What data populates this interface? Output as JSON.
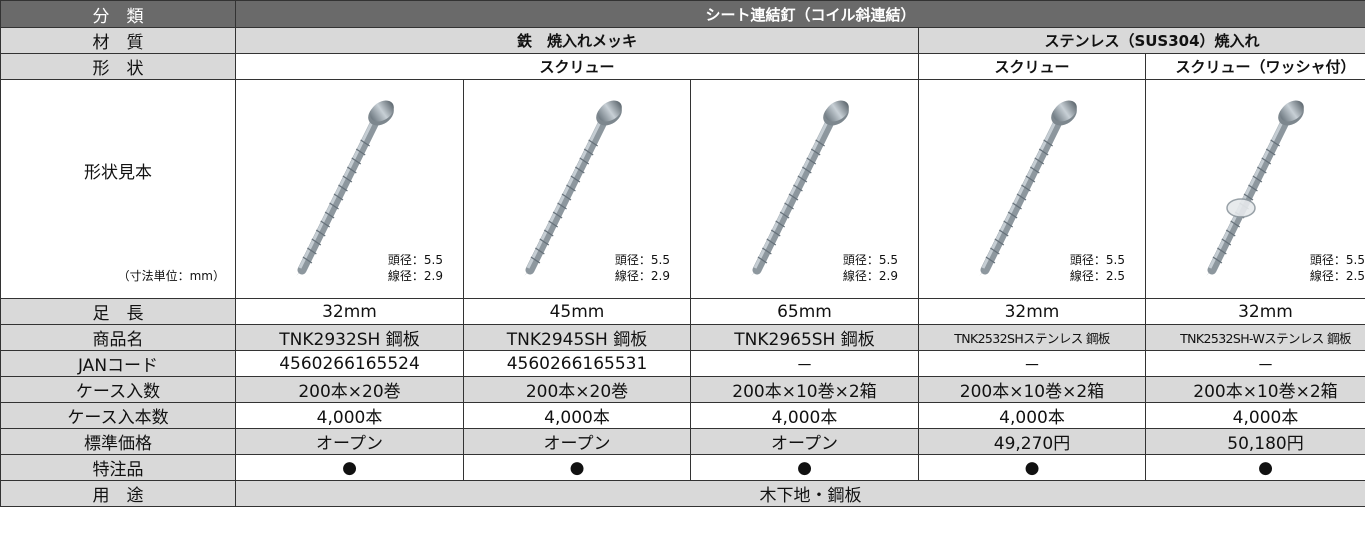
{
  "table": {
    "header": {
      "label": "分　類",
      "value": "シート連結釘（コイル斜連結）"
    },
    "material": {
      "label": "材　質",
      "groups": [
        "鉄　焼入れメッキ",
        "ステンレス（SUS304）焼入れ"
      ]
    },
    "shape": {
      "label": "形　状",
      "groups": [
        "スクリュー",
        "スクリュー",
        "スクリュー（ワッシャ付）"
      ]
    },
    "sample": {
      "label": "形状見本",
      "unit": "（寸法単位：mm）",
      "items": [
        {
          "head": "頭径：5.5",
          "wire": "線径：2.9"
        },
        {
          "head": "頭径：5.5",
          "wire": "線径：2.9"
        },
        {
          "head": "頭径：5.5",
          "wire": "線径：2.9"
        },
        {
          "head": "頭径：5.5",
          "wire": "線径：2.5"
        },
        {
          "head": "頭径：5.5",
          "wire": "線径：2.5"
        }
      ]
    },
    "rows": [
      {
        "label": "足　長",
        "cells": [
          "32mm",
          "45mm",
          "65mm",
          "32mm",
          "32mm"
        ]
      },
      {
        "label": "商品名",
        "cells": [
          "TNK2932SH 鋼板",
          "TNK2945SH 鋼板",
          "TNK2965SH 鋼板",
          "TNK2532SHステンレス 鋼板",
          "TNK2532SH-Wステンレス 鋼板"
        ]
      },
      {
        "label": "JANコード",
        "cells": [
          "4560266165524",
          "4560266165531",
          "－",
          "－",
          "－"
        ]
      },
      {
        "label": "ケース入数",
        "cells": [
          "200本×20巻",
          "200本×20巻",
          "200本×10巻×2箱",
          "200本×10巻×2箱",
          "200本×10巻×2箱"
        ]
      },
      {
        "label": "ケース入本数",
        "cells": [
          "4,000本",
          "4,000本",
          "4,000本",
          "4,000本",
          "4,000本"
        ]
      },
      {
        "label": "標準価格",
        "cells": [
          "オープン",
          "オープン",
          "オープン",
          "49,270円",
          "50,180円"
        ]
      },
      {
        "label": "特注品",
        "cells": [
          "●",
          "●",
          "●",
          "●",
          "●"
        ]
      }
    ],
    "usage": {
      "label": "用　途",
      "value": "木下地・鋼板"
    }
  }
}
